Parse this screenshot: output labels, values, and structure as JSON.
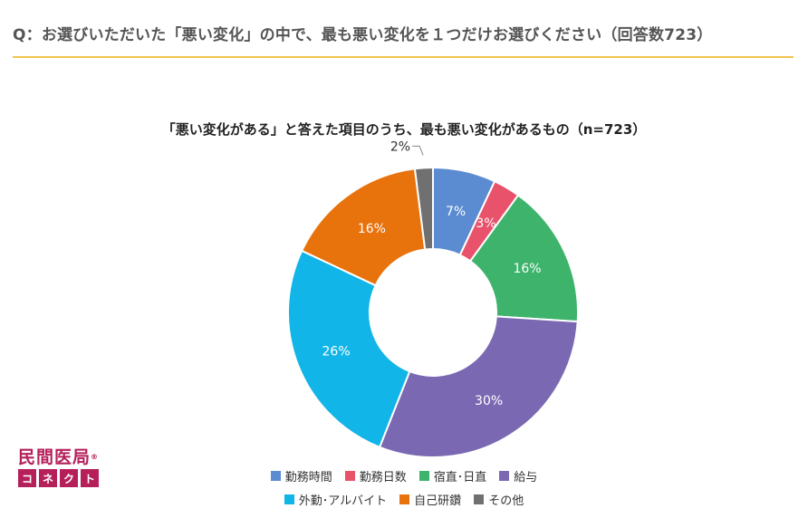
{
  "question": "Q：お選びいただいた「悪い変化」の中で、最も悪い変化を１つだけお選びください（回答数723）",
  "logo": {
    "line1": "民間医局",
    "reg": "®",
    "cross": "✚",
    "chars": [
      "コ",
      "ネ",
      "ク",
      "ト"
    ]
  },
  "chart_data": {
    "type": "pie",
    "donut": true,
    "title": "「悪い変化がある」と答えた項目のうち、最も悪い変化があるもの（n=723）",
    "categories": [
      "勤務時間",
      "勤務日数",
      "宿直･日直",
      "給与",
      "外勤･アルバイト",
      "自己研鑽",
      "その他"
    ],
    "values": [
      7,
      3,
      16,
      30,
      26,
      16,
      2
    ],
    "labels": [
      "7%",
      "3%",
      "16%",
      "30%",
      "26%",
      "16%",
      "2%"
    ],
    "colors": [
      "#5b8bd0",
      "#e8526b",
      "#3db36b",
      "#7b68b2",
      "#12b5e8",
      "#e8720c",
      "#707070"
    ],
    "legend_rows": [
      [
        0,
        1,
        2,
        3
      ],
      [
        4,
        5,
        6
      ]
    ],
    "legend_position": "bottom",
    "start_angle_deg": 0,
    "direction": "clockwise"
  }
}
